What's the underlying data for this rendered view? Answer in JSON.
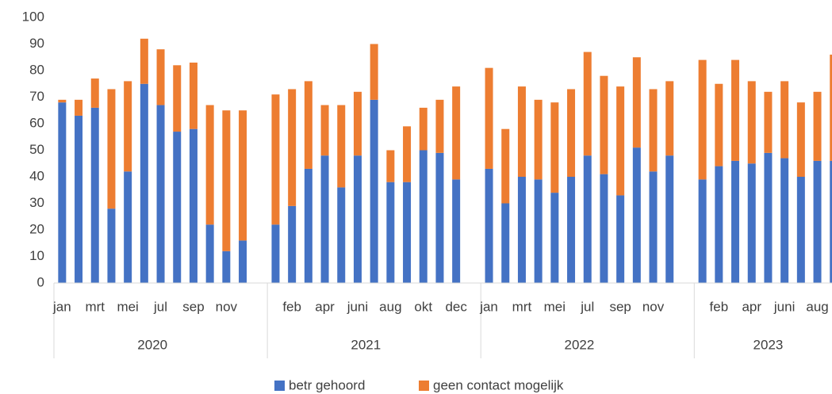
{
  "chart_data": {
    "type": "stacked-bar",
    "groups": [
      {
        "label": "2020",
        "categories": [
          "jan",
          null,
          "mrt",
          null,
          "mei",
          null,
          "jul",
          null,
          "sep",
          null,
          "nov",
          null
        ]
      },
      {
        "label": "2021",
        "categories": [
          null,
          "feb",
          null,
          "apr",
          null,
          "juni",
          null,
          "aug",
          null,
          "okt",
          null,
          "dec"
        ]
      },
      {
        "label": "2022",
        "categories": [
          "jan",
          null,
          "mrt",
          null,
          "mei",
          null,
          "jul",
          null,
          "sep",
          null,
          "nov",
          null
        ]
      },
      {
        "label": "2023",
        "categories": [
          null,
          "feb",
          null,
          "apr",
          null,
          "juni",
          null,
          "aug",
          null
        ]
      }
    ],
    "series": [
      {
        "name": "betr gehoord",
        "color": "#4472c4",
        "values": [
          68,
          63,
          66,
          28,
          42,
          75,
          67,
          57,
          58,
          22,
          12,
          16,
          22,
          29,
          43,
          48,
          36,
          48,
          69,
          38,
          38,
          50,
          49,
          39,
          43,
          30,
          40,
          39,
          34,
          40,
          48,
          41,
          33,
          51,
          42,
          48,
          39,
          44,
          46,
          45,
          49,
          47,
          40,
          46,
          46
        ]
      },
      {
        "name": "geen contact mogelijk",
        "color": "#ed7d31",
        "values": [
          1,
          6,
          11,
          45,
          34,
          17,
          21,
          25,
          25,
          45,
          53,
          49,
          49,
          44,
          33,
          19,
          31,
          24,
          21,
          12,
          21,
          16,
          20,
          35,
          38,
          28,
          34,
          30,
          34,
          33,
          39,
          37,
          41,
          34,
          31,
          28,
          45,
          31,
          38,
          31,
          23,
          29,
          28,
          26,
          40
        ]
      }
    ],
    "ylim": [
      0,
      100
    ],
    "yticks": [
      0,
      10,
      20,
      30,
      40,
      50,
      60,
      70,
      80,
      90,
      100
    ],
    "grid": false,
    "legend": "bottom"
  }
}
